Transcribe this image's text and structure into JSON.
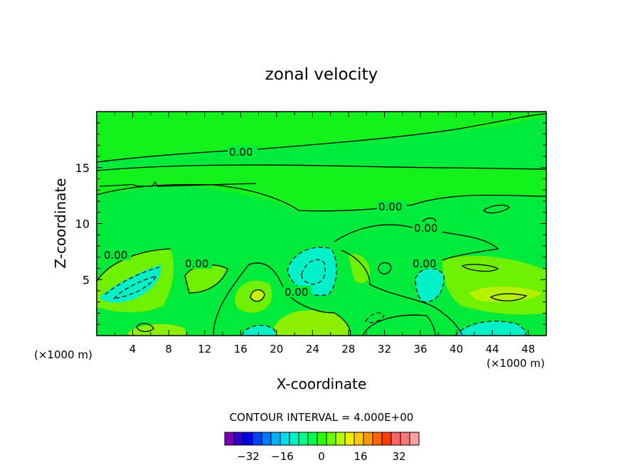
{
  "chart_data": {
    "type": "contour",
    "title": "zonal velocity",
    "xlabel": "X-coordinate",
    "ylabel": "Z-coordinate",
    "x_units": "(×1000 m)",
    "z_units": "(×1000 m)",
    "xlim": [
      0,
      50
    ],
    "ylim": [
      0,
      20
    ],
    "x_ticks": [
      "4",
      "8",
      "12",
      "16",
      "20",
      "24",
      "28",
      "32",
      "36",
      "40",
      "44",
      "48"
    ],
    "y_ticks": [
      "5",
      "10",
      "15"
    ],
    "contour_interval_text": "CONTOUR INTERVAL = 4.000E+00",
    "contour_labels": [
      "0.00",
      "0.00",
      "0.00",
      "0.00",
      "0.00",
      "0.00",
      "0.00"
    ],
    "colorbar": {
      "tick_labels": [
        "−32",
        "−16",
        "0",
        "16",
        "32"
      ],
      "colors": [
        "#7a00b4",
        "#2c00c8",
        "#0000f0",
        "#0040ff",
        "#0078ff",
        "#00b0ff",
        "#00dcf0",
        "#00f0c8",
        "#00ff8c",
        "#00ff50",
        "#28ff00",
        "#6eff00",
        "#b4ff00",
        "#f0f000",
        "#ffc800",
        "#ff9600",
        "#ff6400",
        "#ff3c00",
        "#ff6464",
        "#ff7878",
        "#ffa0a0"
      ]
    }
  }
}
